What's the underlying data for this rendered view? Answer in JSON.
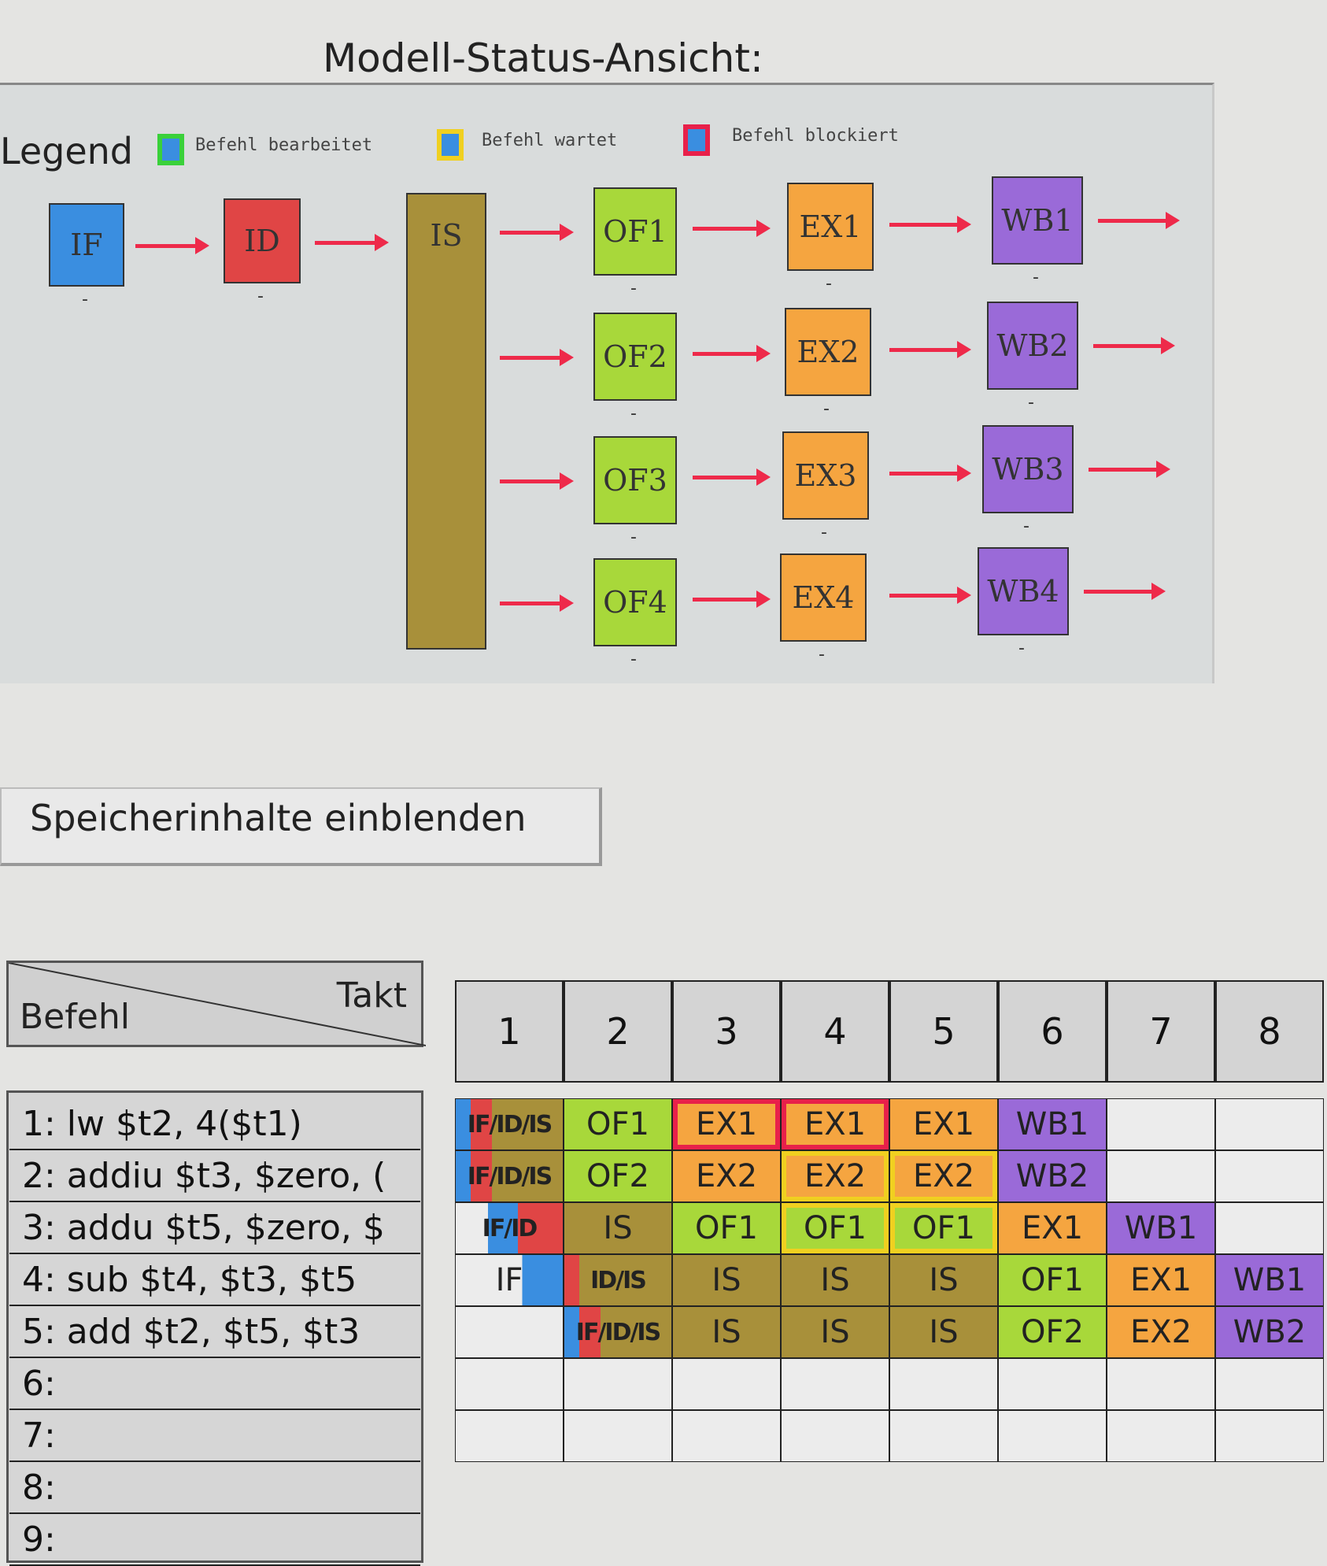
{
  "title": "Modell-Status-Ansicht:",
  "colors": {
    "IF": "#3a8ee0",
    "ID": "#e04545",
    "IS": "#a8903a",
    "OF": "#a8d83a",
    "EX": "#f5a540",
    "WB": "#9a6ad8",
    "processing": "#3ad13a",
    "waiting": "#f0d020",
    "blocked": "#e8204a"
  },
  "legend": {
    "label": "Legend",
    "items": [
      {
        "text": "Befehl bearbeitet",
        "state": "processing"
      },
      {
        "text": "Befehl wartet",
        "state": "waiting"
      },
      {
        "text": "Befehl blockiert",
        "state": "blocked"
      }
    ]
  },
  "pipeline": {
    "if": {
      "label": "IF",
      "value": "-"
    },
    "id": {
      "label": "ID",
      "value": "-"
    },
    "is": {
      "label": "IS"
    },
    "lanes": [
      {
        "of": "OF1",
        "ex": "EX1",
        "wb": "WB1",
        "of_value": "-",
        "ex_value": "-",
        "wb_value": "-"
      },
      {
        "of": "OF2",
        "ex": "EX2",
        "wb": "WB2",
        "of_value": "-",
        "ex_value": "-",
        "wb_value": "-"
      },
      {
        "of": "OF3",
        "ex": "EX3",
        "wb": "WB3",
        "of_value": "-",
        "ex_value": "-",
        "wb_value": "-"
      },
      {
        "of": "OF4",
        "ex": "EX4",
        "wb": "WB4",
        "of_value": "-",
        "ex_value": "-",
        "wb_value": "-"
      }
    ]
  },
  "memory_button": "Speicherinhalte einblenden",
  "table": {
    "corner_left": "Befehl",
    "corner_right": "Takt",
    "takts": [
      "1",
      "2",
      "3",
      "4",
      "5",
      "6",
      "7",
      "8"
    ],
    "instructions": [
      "1:   lw $t2, 4($t1)",
      "2:   addiu $t3, $zero, (",
      "3:   addu $t5, $zero, $",
      "4:   sub $t4, $t3, $t5",
      "5:   add $t2, $t5, $t3",
      "6:",
      "7:",
      "8:",
      "9:"
    ],
    "rows": [
      [
        {
          "t": 1,
          "label": "IF/ID/IS",
          "stages": [
            "IF",
            "ID",
            "IS"
          ]
        },
        {
          "t": 2,
          "label": "OF1",
          "stages": [
            "OF"
          ]
        },
        {
          "t": 3,
          "label": "EX1",
          "stages": [
            "EX"
          ],
          "state": "blocked"
        },
        {
          "t": 4,
          "label": "EX1",
          "stages": [
            "EX"
          ],
          "state": "blocked"
        },
        {
          "t": 5,
          "label": "EX1",
          "stages": [
            "EX"
          ]
        },
        {
          "t": 6,
          "label": "WB1",
          "stages": [
            "WB"
          ]
        }
      ],
      [
        {
          "t": 1,
          "label": "IF/ID/IS",
          "stages": [
            "IF",
            "ID",
            "IS"
          ]
        },
        {
          "t": 2,
          "label": "OF2",
          "stages": [
            "OF"
          ]
        },
        {
          "t": 3,
          "label": "EX2",
          "stages": [
            "EX"
          ]
        },
        {
          "t": 4,
          "label": "EX2",
          "stages": [
            "EX"
          ],
          "state": "waiting"
        },
        {
          "t": 5,
          "label": "EX2",
          "stages": [
            "EX"
          ],
          "state": "waiting"
        },
        {
          "t": 6,
          "label": "WB2",
          "stages": [
            "WB"
          ]
        }
      ],
      [
        {
          "t": 1,
          "label": "IF/ID",
          "stages": [
            "IF",
            "ID"
          ]
        },
        {
          "t": 2,
          "label": "IS",
          "stages": [
            "IS"
          ]
        },
        {
          "t": 3,
          "label": "OF1",
          "stages": [
            "OF"
          ]
        },
        {
          "t": 4,
          "label": "OF1",
          "stages": [
            "OF"
          ],
          "state": "waiting"
        },
        {
          "t": 5,
          "label": "OF1",
          "stages": [
            "OF"
          ],
          "state": "waiting"
        },
        {
          "t": 6,
          "label": "EX1",
          "stages": [
            "EX"
          ]
        },
        {
          "t": 7,
          "label": "WB1",
          "stages": [
            "WB"
          ]
        }
      ],
      [
        {
          "t": 1,
          "label": "IF",
          "stages": [
            "IF"
          ]
        },
        {
          "t": 2,
          "label": "ID/IS",
          "stages": [
            "ID",
            "IS"
          ]
        },
        {
          "t": 3,
          "label": "IS",
          "stages": [
            "IS"
          ]
        },
        {
          "t": 4,
          "label": "IS",
          "stages": [
            "IS"
          ]
        },
        {
          "t": 5,
          "label": "IS",
          "stages": [
            "IS"
          ]
        },
        {
          "t": 6,
          "label": "OF1",
          "stages": [
            "OF"
          ]
        },
        {
          "t": 7,
          "label": "EX1",
          "stages": [
            "EX"
          ]
        },
        {
          "t": 8,
          "label": "WB1",
          "stages": [
            "WB"
          ]
        }
      ],
      [
        {
          "t": 2,
          "label": "IF/ID/IS",
          "stages": [
            "IF",
            "ID",
            "IS"
          ]
        },
        {
          "t": 3,
          "label": "IS",
          "stages": [
            "IS"
          ]
        },
        {
          "t": 4,
          "label": "IS",
          "stages": [
            "IS"
          ]
        },
        {
          "t": 5,
          "label": "IS",
          "stages": [
            "IS"
          ]
        },
        {
          "t": 6,
          "label": "OF2",
          "stages": [
            "OF"
          ]
        },
        {
          "t": 7,
          "label": "EX2",
          "stages": [
            "EX"
          ]
        },
        {
          "t": 8,
          "label": "WB2",
          "stages": [
            "WB"
          ]
        }
      ]
    ]
  }
}
